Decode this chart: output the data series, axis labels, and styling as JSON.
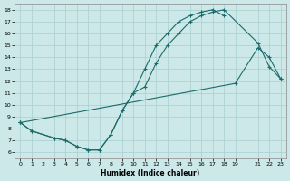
{
  "xlabel": "Humidex (Indice chaleur)",
  "bg_color": "#cce8e8",
  "grid_color": "#aacece",
  "line_color": "#1a6b6b",
  "xlim": [
    -0.5,
    23.5
  ],
  "ylim": [
    5.5,
    18.5
  ],
  "xticks": [
    0,
    1,
    2,
    3,
    4,
    5,
    6,
    7,
    8,
    9,
    10,
    11,
    12,
    13,
    14,
    15,
    16,
    17,
    18,
    19,
    21,
    22,
    23
  ],
  "yticks": [
    6,
    7,
    8,
    9,
    10,
    11,
    12,
    13,
    14,
    15,
    16,
    17,
    18
  ],
  "line1_x": [
    0,
    1,
    3,
    4,
    5,
    6,
    7,
    8,
    9,
    10,
    11,
    12,
    13,
    14,
    15,
    16,
    17,
    18
  ],
  "line1_y": [
    8.5,
    7.8,
    7.2,
    7.0,
    6.5,
    6.2,
    6.2,
    7.5,
    9.5,
    11.0,
    13.0,
    15.0,
    16.0,
    17.0,
    17.5,
    17.8,
    18.0,
    17.5
  ],
  "line2_x": [
    0,
    1,
    3,
    4,
    5,
    6,
    7,
    8,
    9,
    10,
    11,
    12,
    13,
    14,
    15,
    16,
    17,
    18,
    21,
    22,
    23
  ],
  "line2_y": [
    8.5,
    7.8,
    7.2,
    7.0,
    6.5,
    6.2,
    6.2,
    7.5,
    9.5,
    11.0,
    11.5,
    13.5,
    15.0,
    16.0,
    17.0,
    17.5,
    17.8,
    18.0,
    15.2,
    13.2,
    12.2
  ],
  "line3_x": [
    0,
    19,
    21,
    22,
    23
  ],
  "line3_y": [
    8.5,
    11.8,
    14.8,
    14.0,
    12.2
  ]
}
